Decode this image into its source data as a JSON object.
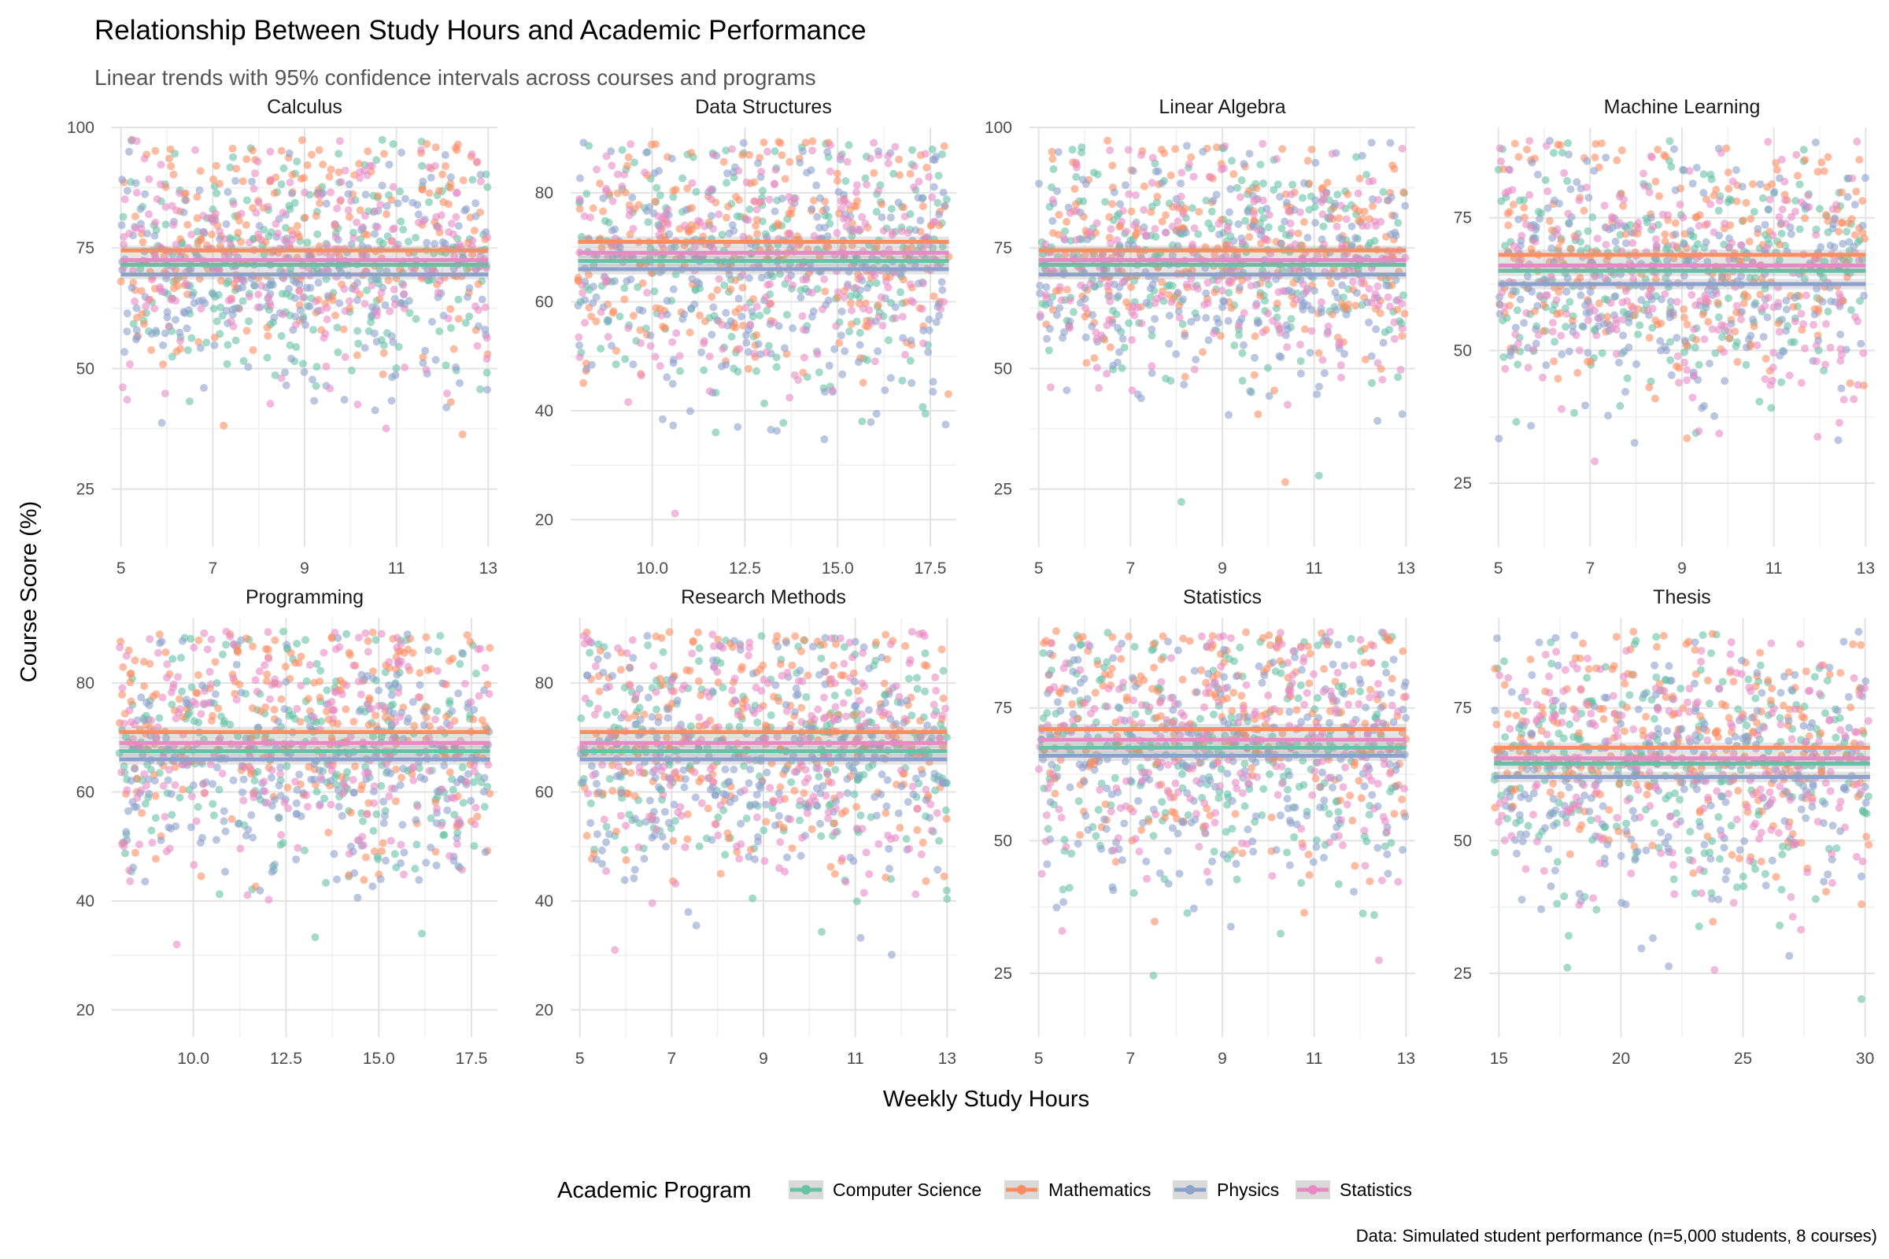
{
  "title": "Relationship Between Study Hours and Academic Performance",
  "subtitle": "Linear trends with 95% confidence intervals across courses and programs",
  "caption": "Data: Simulated student performance (n=5,000 students, 8 courses)",
  "xlabel": "Weekly Study Hours",
  "ylabel": "Course Score (%)",
  "legend": {
    "title": "Academic Program",
    "items": [
      {
        "name": "Computer Science",
        "color": "#66c2a5"
      },
      {
        "name": "Mathematics",
        "color": "#fc8d62"
      },
      {
        "name": "Physics",
        "color": "#8da0cb"
      },
      {
        "name": "Statistics",
        "color": "#e78ac3"
      }
    ]
  },
  "chart_data": {
    "type": "scatter",
    "facets": [
      {
        "name": "Calculus",
        "xlim": [
          4.8,
          13.2
        ],
        "ylim": [
          13,
          100
        ],
        "xticks": [
          "5",
          "7",
          "9",
          "11",
          "13"
        ],
        "xtick_values": [
          5,
          7,
          9,
          11,
          13
        ],
        "yticks": [
          "25",
          "50",
          "75",
          "100"
        ],
        "ytick_values": [
          25,
          50,
          75,
          100
        ],
        "trends": [
          {
            "series": "Computer Science",
            "intercept": 71.5,
            "slope": 0.0
          },
          {
            "series": "Mathematics",
            "intercept": 74.5,
            "slope": 0.0
          },
          {
            "series": "Physics",
            "intercept": 69.5,
            "slope": 0.0
          },
          {
            "series": "Statistics",
            "intercept": 72.5,
            "slope": 0.0
          }
        ]
      },
      {
        "name": "Data Structures",
        "xlim": [
          7.8,
          18.2
        ],
        "ylim": [
          15,
          92
        ],
        "xticks": [
          "10.0",
          "12.5",
          "15.0",
          "17.5"
        ],
        "xtick_values": [
          10,
          12.5,
          15,
          17.5
        ],
        "yticks": [
          "20",
          "40",
          "60",
          "80"
        ],
        "ytick_values": [
          20,
          40,
          60,
          80
        ],
        "trends": [
          {
            "series": "Computer Science",
            "intercept": 67.5,
            "slope": 0.0
          },
          {
            "series": "Mathematics",
            "intercept": 71.0,
            "slope": 0.0
          },
          {
            "series": "Physics",
            "intercept": 66.0,
            "slope": 0.0
          },
          {
            "series": "Statistics",
            "intercept": 69.0,
            "slope": 0.0
          }
        ]
      },
      {
        "name": "Linear Algebra",
        "xlim": [
          4.8,
          13.2
        ],
        "ylim": [
          13,
          100
        ],
        "xticks": [
          "5",
          "7",
          "9",
          "11",
          "13"
        ],
        "xtick_values": [
          5,
          7,
          9,
          11,
          13
        ],
        "yticks": [
          "25",
          "50",
          "75",
          "100"
        ],
        "ytick_values": [
          25,
          50,
          75,
          100
        ],
        "trends": [
          {
            "series": "Computer Science",
            "intercept": 71.5,
            "slope": 0.0
          },
          {
            "series": "Mathematics",
            "intercept": 74.5,
            "slope": 0.0
          },
          {
            "series": "Physics",
            "intercept": 69.5,
            "slope": 0.0
          },
          {
            "series": "Statistics",
            "intercept": 72.5,
            "slope": 0.0
          }
        ]
      },
      {
        "name": "Machine Learning",
        "xlim": [
          4.8,
          13.2
        ],
        "ylim": [
          13,
          92
        ],
        "xticks": [
          "5",
          "7",
          "9",
          "11",
          "13"
        ],
        "xtick_values": [
          5,
          7,
          9,
          11,
          13
        ],
        "yticks": [
          "25",
          "50",
          "75"
        ],
        "ytick_values": [
          25,
          50,
          75
        ],
        "trends": [
          {
            "series": "Computer Science",
            "intercept": 65.0,
            "slope": 0.0
          },
          {
            "series": "Mathematics",
            "intercept": 68.0,
            "slope": 0.0
          },
          {
            "series": "Physics",
            "intercept": 62.5,
            "slope": 0.0
          },
          {
            "series": "Statistics",
            "intercept": 66.0,
            "slope": 0.0
          }
        ]
      },
      {
        "name": "Programming",
        "xlim": [
          7.8,
          18.2
        ],
        "ylim": [
          15,
          92
        ],
        "xticks": [
          "10.0",
          "12.5",
          "15.0",
          "17.5"
        ],
        "xtick_values": [
          10,
          12.5,
          15,
          17.5
        ],
        "yticks": [
          "20",
          "40",
          "60",
          "80"
        ],
        "ytick_values": [
          20,
          40,
          60,
          80
        ],
        "trends": [
          {
            "series": "Computer Science",
            "intercept": 67.5,
            "slope": 0.0
          },
          {
            "series": "Mathematics",
            "intercept": 71.0,
            "slope": 0.0
          },
          {
            "series": "Physics",
            "intercept": 66.0,
            "slope": 0.0
          },
          {
            "series": "Statistics",
            "intercept": 69.0,
            "slope": 0.0
          }
        ]
      },
      {
        "name": "Research Methods",
        "xlim": [
          4.8,
          13.2
        ],
        "ylim": [
          15,
          92
        ],
        "xticks": [
          "5",
          "7",
          "9",
          "11",
          "13"
        ],
        "xtick_values": [
          5,
          7,
          9,
          11,
          13
        ],
        "yticks": [
          "20",
          "40",
          "60",
          "80"
        ],
        "ytick_values": [
          20,
          40,
          60,
          80
        ],
        "trends": [
          {
            "series": "Computer Science",
            "intercept": 67.5,
            "slope": 0.0
          },
          {
            "series": "Mathematics",
            "intercept": 71.0,
            "slope": 0.0
          },
          {
            "series": "Physics",
            "intercept": 66.0,
            "slope": 0.0
          },
          {
            "series": "Statistics",
            "intercept": 69.0,
            "slope": 0.0
          }
        ]
      },
      {
        "name": "Statistics",
        "xlim": [
          4.8,
          13.2
        ],
        "ylim": [
          13,
          92
        ],
        "xticks": [
          "5",
          "7",
          "9",
          "11",
          "13"
        ],
        "xtick_values": [
          5,
          7,
          9,
          11,
          13
        ],
        "yticks": [
          "25",
          "50",
          "75"
        ],
        "ytick_values": [
          25,
          50,
          75
        ],
        "trends": [
          {
            "series": "Computer Science",
            "intercept": 67.5,
            "slope": 0.0
          },
          {
            "series": "Mathematics",
            "intercept": 71.0,
            "slope": 0.0
          },
          {
            "series": "Physics",
            "intercept": 66.0,
            "slope": 0.0
          },
          {
            "series": "Statistics",
            "intercept": 69.0,
            "slope": 0.0
          }
        ]
      },
      {
        "name": "Thesis",
        "xlim": [
          14.6,
          30.4
        ],
        "ylim": [
          13,
          92
        ],
        "xticks": [
          "15",
          "20",
          "25",
          "30"
        ],
        "xtick_values": [
          15,
          20,
          25,
          30
        ],
        "yticks": [
          "25",
          "50",
          "75"
        ],
        "ytick_values": [
          25,
          50,
          75
        ],
        "trends": [
          {
            "series": "Computer Science",
            "intercept": 64.5,
            "slope": 0.0
          },
          {
            "series": "Mathematics",
            "intercept": 67.5,
            "slope": 0.0
          },
          {
            "series": "Physics",
            "intercept": 62.0,
            "slope": 0.0
          },
          {
            "series": "Statistics",
            "intercept": 65.5,
            "slope": 0.0
          }
        ]
      }
    ]
  }
}
